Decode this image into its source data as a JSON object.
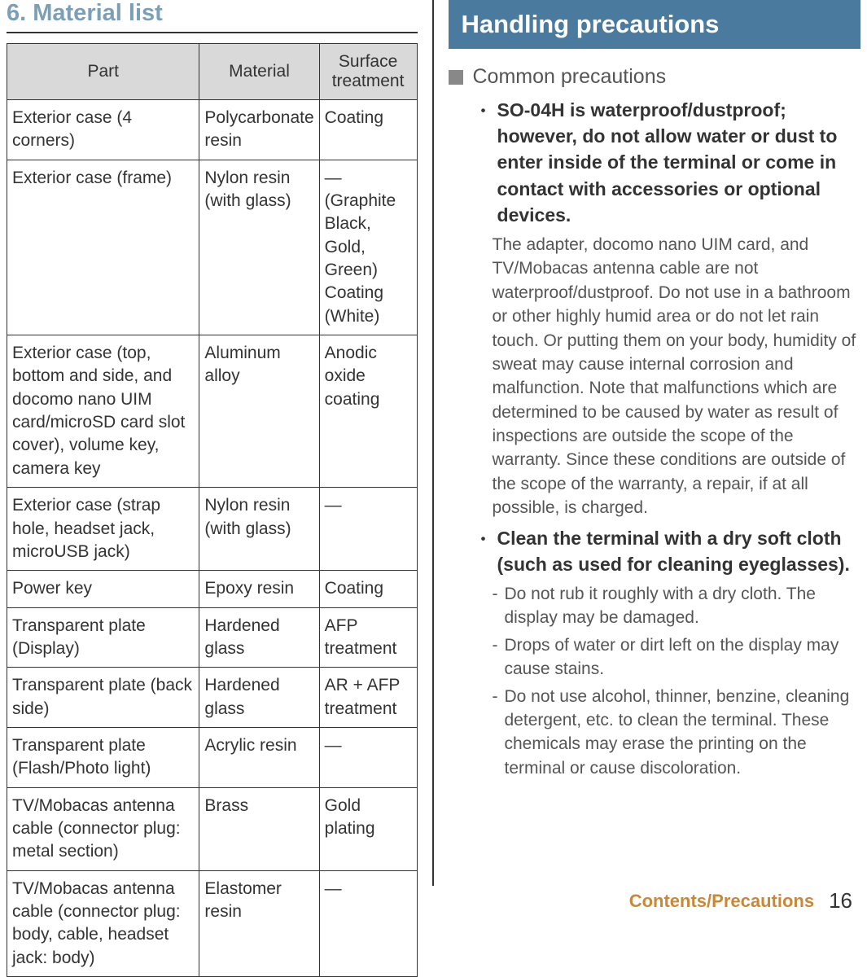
{
  "left": {
    "section_title": "6.  Material list",
    "table": {
      "headers": [
        "Part",
        "Material",
        "Surface treatment"
      ],
      "rows": [
        [
          "Exterior case (4 corners)",
          "Polycarbonate resin",
          "Coating"
        ],
        [
          "Exterior case (frame)",
          "Nylon resin (with glass)",
          "— (Graphite Black, Gold, Green) Coating (White)"
        ],
        [
          "Exterior case (top, bottom and side, and docomo nano UIM card/microSD card slot cover), volume key, camera key",
          "Aluminum alloy",
          "Anodic oxide coating"
        ],
        [
          "Exterior case (strap hole, headset jack, microUSB jack)",
          "Nylon resin (with glass)",
          "—"
        ],
        [
          "Power key",
          "Epoxy resin",
          "Coating"
        ],
        [
          "Transparent plate (Display)",
          "Hardened glass",
          "AFP treatment"
        ],
        [
          "Transparent plate (back side)",
          "Hardened glass",
          "AR + AFP treatment"
        ],
        [
          "Transparent plate (Flash/Photo light)",
          "Acrylic resin",
          "—"
        ],
        [
          "TV/Mobacas antenna cable (connector plug: metal section)",
          "Brass",
          "Gold plating"
        ],
        [
          "TV/Mobacas antenna cable (connector plug: body, cable, headset jack: body)",
          "Elastomer resin",
          "—"
        ]
      ]
    }
  },
  "right": {
    "banner": "Handling precautions",
    "subsection": "Common precautions",
    "item1_bold": "SO-04H is waterproof/dustproof; however, do not allow water or dust to enter inside of the terminal or come in contact with accessories or optional devices.",
    "item1_body": "The adapter, docomo nano UIM card, and TV/Mobacas antenna cable are not waterproof/dustproof. Do not use in a bathroom or other highly humid area or do not let rain touch. Or putting them on your body, humidity of sweat may cause internal corrosion and malfunction. Note that malfunctions which are determined to be caused by water as result of inspections are outside the scope of the warranty. Since these conditions are outside of the scope of the warranty, a repair, if at all possible, is charged.",
    "item2_bold": "Clean the terminal with a dry soft cloth (such as used for cleaning eyeglasses).",
    "item2_dashes": [
      "Do not rub it roughly with a dry cloth. The display may be damaged.",
      "Drops of water or dirt left on the display may cause stains.",
      "Do not use alcohol, thinner, benzine, cleaning detergent, etc. to clean the terminal. These chemicals may erase the printing on the terminal or cause discoloration."
    ]
  },
  "footer": {
    "label": "Contents/Precautions",
    "page": "16"
  }
}
